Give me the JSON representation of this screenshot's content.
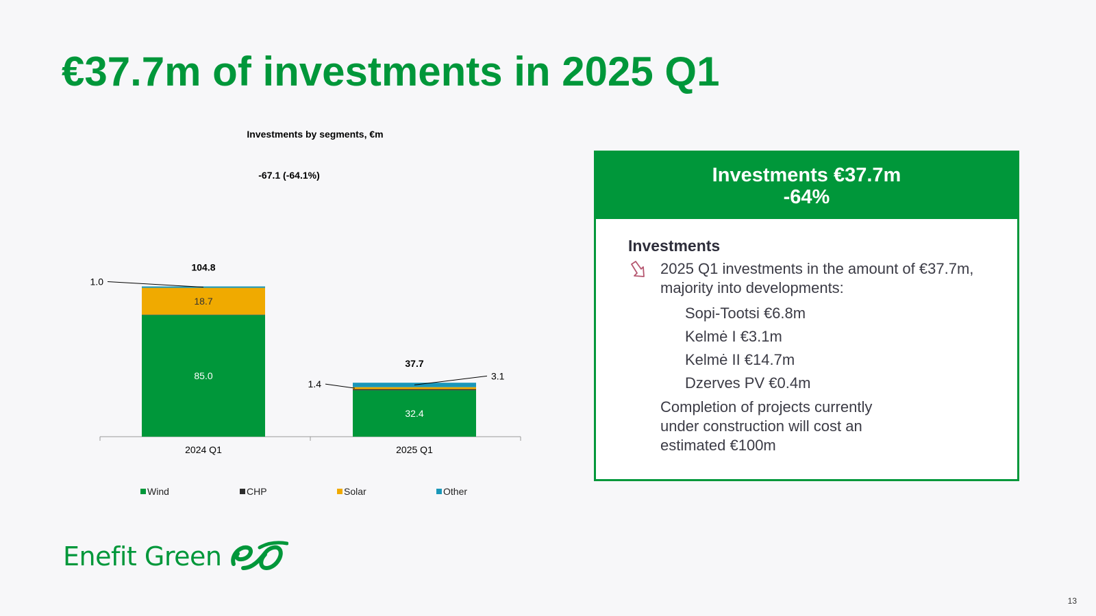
{
  "slide": {
    "title": "€37.7m of investments in 2025 Q1",
    "page_number": "13"
  },
  "chart_data": {
    "type": "bar",
    "stacked": true,
    "title": "Investments by segments, €m",
    "change_annotation": "-67.1 (-64.1%)",
    "categories": [
      "2024 Q1",
      "2025 Q1"
    ],
    "totals": [
      "104.8",
      "37.7"
    ],
    "series": [
      {
        "name": "Wind",
        "color": "#00973a",
        "values": [
          85.0,
          32.4
        ],
        "labels": [
          "85.0",
          "32.4"
        ]
      },
      {
        "name": "CHP",
        "color": "#2d2d2d",
        "values": [
          0.1,
          0.8
        ],
        "labels": [
          "",
          ""
        ]
      },
      {
        "name": "Solar",
        "color": "#f0aa00",
        "values": [
          18.7,
          1.4
        ],
        "labels": [
          "18.7",
          "1.4"
        ]
      },
      {
        "name": "Other",
        "color": "#1a97b9",
        "values": [
          1.0,
          3.1
        ],
        "labels": [
          "1.0",
          "3.1"
        ]
      }
    ],
    "ylim": [
      0,
      110
    ],
    "legend_position": "bottom"
  },
  "panel": {
    "header_line1": "Investments €37.7m",
    "header_line2": "-64%",
    "subtitle": "Investments",
    "bullet_text": "2025 Q1 investments in the amount of €37.7m, majority into developments:",
    "developments": [
      "Sopi-Tootsi €6.8m",
      "Kelmė I €3.1m",
      "Kelmė II €14.7m",
      "Dzerves PV €0.4m"
    ],
    "completion_text": "Completion of projects currently under construction will cost an estimated €100m",
    "accent_color": "#00973a"
  },
  "logo": {
    "text": "Enefit Green"
  }
}
